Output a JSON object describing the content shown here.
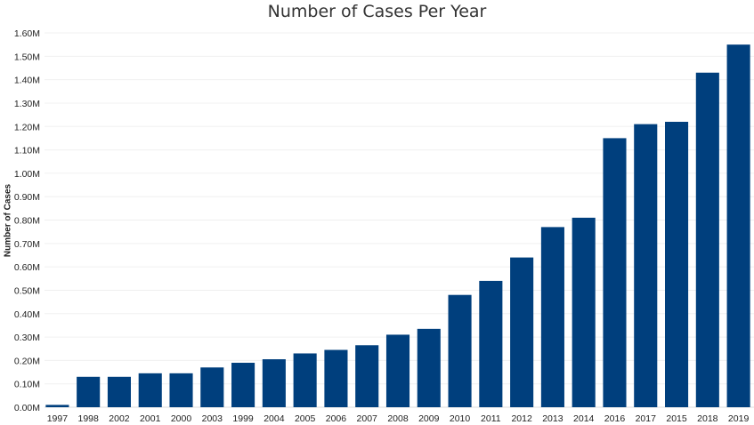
{
  "chart_data": {
    "type": "bar",
    "title": "Number of Cases Per Year",
    "xlabel": "",
    "ylabel": "Number of Cases",
    "ylim": [
      0,
      1.6
    ],
    "yticks": [
      "0.00M",
      "0.10M",
      "0.20M",
      "0.30M",
      "0.40M",
      "0.50M",
      "0.60M",
      "0.70M",
      "0.80M",
      "0.90M",
      "1.00M",
      "1.10M",
      "1.20M",
      "1.30M",
      "1.40M",
      "1.50M",
      "1.60M"
    ],
    "categories": [
      "1997",
      "1998",
      "2002",
      "2001",
      "2000",
      "2003",
      "1999",
      "2004",
      "2005",
      "2006",
      "2007",
      "2008",
      "2009",
      "2010",
      "2011",
      "2012",
      "2013",
      "2014",
      "2016",
      "2017",
      "2015",
      "2018",
      "2019"
    ],
    "values": [
      0.01,
      0.13,
      0.13,
      0.145,
      0.145,
      0.17,
      0.19,
      0.205,
      0.23,
      0.245,
      0.265,
      0.31,
      0.335,
      0.48,
      0.54,
      0.64,
      0.77,
      0.81,
      1.15,
      1.21,
      1.22,
      1.43,
      1.55
    ],
    "bar_color": "#003f7d",
    "grid": true,
    "legend": "none"
  }
}
